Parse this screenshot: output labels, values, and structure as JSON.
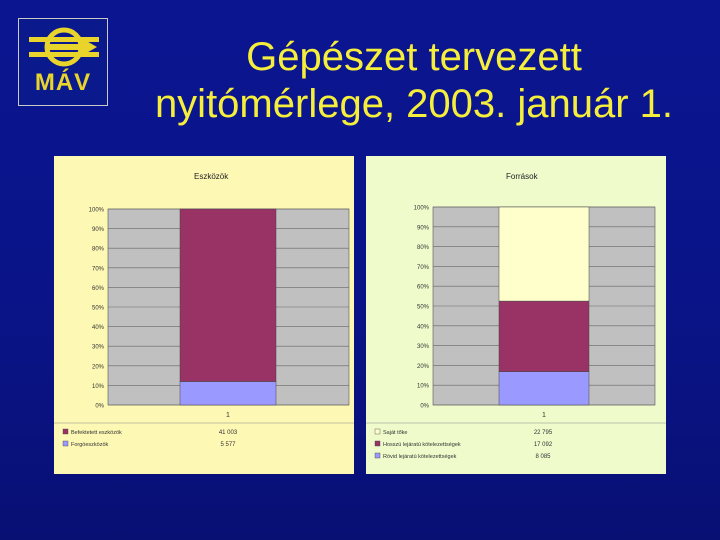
{
  "header": {
    "logo_text": "MÁV",
    "title_line1": "Gépészet tervezett",
    "title_line2": "nyitómérlege, 2003. január 1."
  },
  "colors": {
    "background": "#0a1488",
    "title": "#f5ee3b",
    "logo_accent": "#e8d42a",
    "plot_area": "#c0c0c0",
    "maroon": "#993366",
    "lavender": "#9999ff",
    "pale_yellow": "#ffffcc"
  },
  "chart_data": [
    {
      "type": "bar",
      "stacked": "percent",
      "title": "Eszközök",
      "categories": [
        "1"
      ],
      "yticks": [
        "100%",
        "90%",
        "80%",
        "70%",
        "60%",
        "50%",
        "40%",
        "30%",
        "20%",
        "10%",
        "0%"
      ],
      "ylim": [
        0,
        100
      ],
      "series": [
        {
          "name": "Befektetett eszközök",
          "value_label": "41 003",
          "value": 41003,
          "color": "#993366"
        },
        {
          "name": "Forgóeszközök",
          "value_label": "5 577",
          "value": 5577,
          "color": "#9999ff"
        }
      ],
      "data_table": true,
      "grid": true
    },
    {
      "type": "bar",
      "stacked": "percent",
      "title": "Források",
      "categories": [
        "1"
      ],
      "yticks": [
        "100%",
        "90%",
        "80%",
        "70%",
        "60%",
        "50%",
        "40%",
        "30%",
        "20%",
        "10%",
        "0%"
      ],
      "ylim": [
        0,
        100
      ],
      "series": [
        {
          "name": "Saját tőke",
          "value_label": "22 795",
          "value": 22795,
          "color": "#ffffcc"
        },
        {
          "name": "Hosszú lejáratú kötelezettségek",
          "value_label": "17 092",
          "value": 17092,
          "color": "#993366"
        },
        {
          "name": "Rövid lejáratú kötelezettségek",
          "value_label": "8 085",
          "value": 8085,
          "color": "#9999ff"
        }
      ],
      "data_table": true,
      "grid": true
    }
  ]
}
